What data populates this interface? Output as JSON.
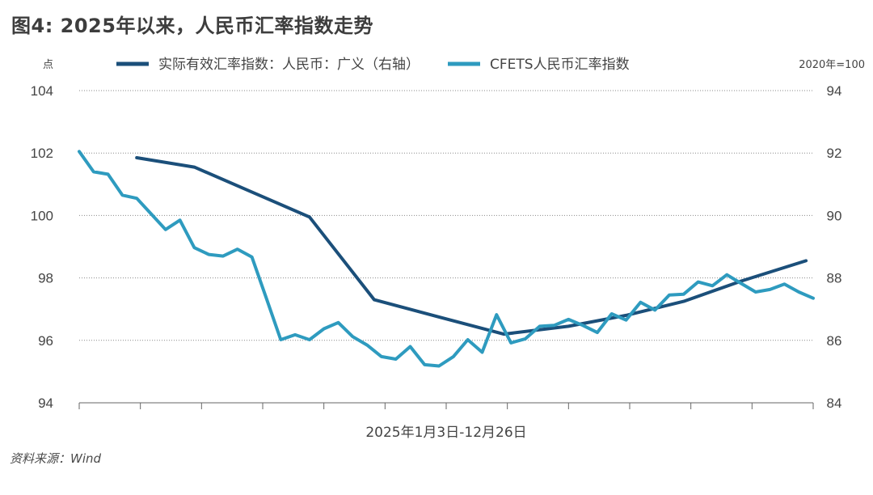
{
  "title": "图4: 2025年以来，人民币汇率指数走势",
  "source": "资料来源：Wind",
  "chart_data": {
    "type": "line",
    "title": "图4: 2025年以来，人民币汇率指数走势",
    "xlabel": "2025年1月3日-12月26日",
    "ylabel_left": "点",
    "ylabel_right": "2020年=100",
    "ylim_left": [
      94,
      104
    ],
    "ylim_right": [
      84,
      94
    ],
    "yticks_left": [
      "104",
      "102",
      "100",
      "98",
      "96",
      "94"
    ],
    "yticks_right": [
      "94",
      "92",
      "90",
      "88",
      "86",
      "84"
    ],
    "grid": "dotted horizontal",
    "legend_position": "top",
    "x_period": [
      "2025-01-03",
      "2025-12-26"
    ],
    "series": [
      {
        "name": "实际有效汇率指数：人民币：广义（右轴）",
        "axis": "right",
        "color": "#1b4f7a",
        "x_week": [
          4.0,
          8.0,
          12.0,
          16.0,
          20.5,
          25.0,
          29.5,
          34.0,
          38.0,
          42.0,
          46.0,
          50.5
        ],
        "values": [
          91.85,
          91.55,
          90.75,
          89.95,
          87.3,
          86.75,
          86.2,
          86.45,
          86.8,
          87.25,
          87.9,
          88.55
        ]
      },
      {
        "name": "CFETS人民币汇率指数",
        "axis": "left",
        "color": "#2e9bbf",
        "x_week": [
          0,
          1,
          2,
          3,
          4,
          5,
          6,
          7,
          8,
          9,
          10,
          11,
          12,
          13,
          14,
          15,
          16,
          17,
          18,
          19,
          20,
          21,
          22,
          23,
          24,
          25,
          26,
          27,
          28,
          29,
          30,
          31,
          32,
          33,
          34,
          35,
          36,
          37,
          38,
          39,
          40,
          41,
          42,
          43,
          44,
          45,
          46,
          47,
          48,
          49,
          50,
          51
        ],
        "values": [
          102.05,
          101.4,
          101.32,
          100.65,
          100.55,
          100.05,
          99.55,
          99.85,
          98.97,
          98.75,
          98.7,
          98.92,
          98.67,
          97.35,
          96.02,
          96.18,
          96.02,
          96.37,
          96.57,
          96.12,
          95.85,
          95.48,
          95.4,
          95.8,
          95.22,
          95.18,
          95.48,
          96.02,
          95.62,
          96.82,
          95.92,
          96.05,
          96.45,
          96.48,
          96.67,
          96.48,
          96.25,
          96.85,
          96.65,
          97.22,
          96.97,
          97.45,
          97.48,
          97.87,
          97.75,
          98.1,
          97.82,
          97.55,
          97.63,
          97.8,
          97.55,
          97.35
        ]
      }
    ]
  }
}
